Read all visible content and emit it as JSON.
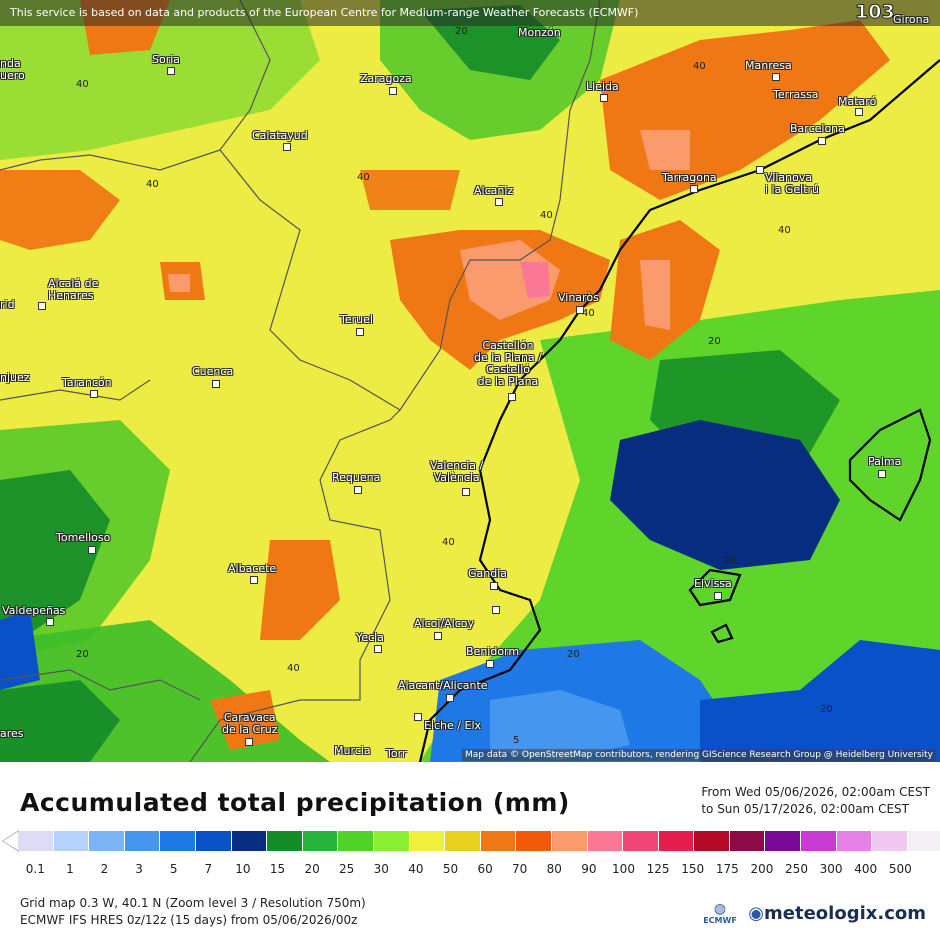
{
  "map": {
    "service_notice": "This service is based on data and products of the European Centre for Medium-range Weather Forecasts (ECMWF)",
    "max_value": "103",
    "attribution": "Map data © OpenStreetMap contributors, rendering GIScience Research Group @ Heidelberg University",
    "cities": [
      {
        "name": "Soria"
      },
      {
        "name": "Monzón"
      },
      {
        "name": "Zaragoza"
      },
      {
        "name": "Lleida"
      },
      {
        "name": "Manresa"
      },
      {
        "name": "Terrassa"
      },
      {
        "name": "Mataró"
      },
      {
        "name": "Barcelona"
      },
      {
        "name": "Girona"
      },
      {
        "name": "Calatayud"
      },
      {
        "name": "Tarragona"
      },
      {
        "name": "Vilanova\ni la Geltrú"
      },
      {
        "name": "Alcañiz"
      },
      {
        "name": "Alcalá de\nHenares"
      },
      {
        "name": "Teruel"
      },
      {
        "name": "Vinaròs"
      },
      {
        "name": "Castellón\nde la Plana /\nCastelló\nde la Plana"
      },
      {
        "name": "Cuenca"
      },
      {
        "name": "Tarancón"
      },
      {
        "name": "Requena"
      },
      {
        "name": "Valencia /\nValència"
      },
      {
        "name": "Palma"
      },
      {
        "name": "Tomelloso"
      },
      {
        "name": "Albacete"
      },
      {
        "name": "Gandia"
      },
      {
        "name": "Eivissa"
      },
      {
        "name": "Valdepeñas"
      },
      {
        "name": "Alcoi/Alcoy"
      },
      {
        "name": "Yecla"
      },
      {
        "name": "Benidorm"
      },
      {
        "name": "Alacant/Alicante"
      },
      {
        "name": "Caravaca\nde la Cruz"
      },
      {
        "name": "Elche / Elx"
      },
      {
        "name": "Murcia"
      },
      {
        "name": "nda\nuero"
      },
      {
        "name": "rid"
      },
      {
        "name": "njuez"
      },
      {
        "name": "ares"
      },
      {
        "name": "Torr"
      }
    ],
    "contour_labels": [
      "20",
      "40",
      "40",
      "40",
      "40",
      "40",
      "40",
      "40",
      "20",
      "40",
      "20",
      "20",
      "20",
      "40",
      "20",
      "5"
    ]
  },
  "legend": {
    "title": "Accumulated total precipitation (mm)",
    "from": "From Wed 05/06/2026, 02:00am CEST",
    "to": "to Sun 05/17/2026, 02:00am CEST",
    "ticks": [
      "0.1",
      "1",
      "2",
      "3",
      "5",
      "7",
      "10",
      "15",
      "20",
      "25",
      "30",
      "40",
      "50",
      "60",
      "70",
      "80",
      "90",
      "100",
      "125",
      "150",
      "175",
      "200",
      "250",
      "300",
      "400",
      "500"
    ],
    "colors": [
      "#dcdcf6",
      "#b4d2fa",
      "#7cb4f5",
      "#4696f0",
      "#1e78e6",
      "#0a50c8",
      "#062d80",
      "#148c28",
      "#28b43c",
      "#50d228",
      "#8cf032",
      "#f0f03c",
      "#e6d21e",
      "#f07814",
      "#f05a0a",
      "#fa9b6e",
      "#fa7896",
      "#f04678",
      "#e61e50",
      "#b40a28",
      "#8c0a46",
      "#780a96",
      "#c83cd2",
      "#e682e6",
      "#f0c8f0",
      "#f5f0f5",
      "#c8c8c8"
    ],
    "grid_info": "Grid map 0.3 W, 40.1 N (Zoom level 3 / Resolution 750m)",
    "model_info": "ECMWF IFS HRES 0z/12z (15 days) from 05/06/2026/00z",
    "brand": "meteologix.com",
    "ecmwf_logo": "ECMWF"
  }
}
